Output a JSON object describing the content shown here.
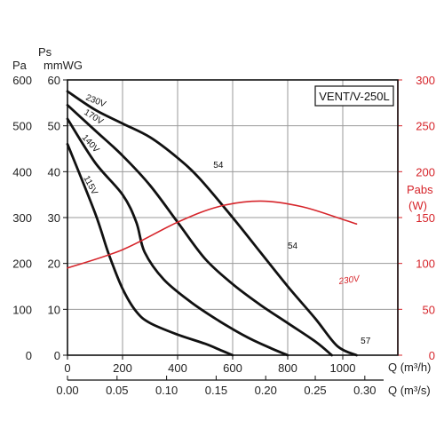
{
  "chart_data": {
    "type": "line",
    "model_label": "VENT/V-250L",
    "axes": {
      "pressure_pa": {
        "title": "Pa",
        "range": [
          0,
          600
        ],
        "ticks": [
          "0",
          "100",
          "200",
          "300",
          "400",
          "500",
          "600"
        ]
      },
      "pressure_mmwg": {
        "title_top": "Ps",
        "title": "mmWG",
        "range": [
          0,
          60
        ],
        "ticks": [
          "0",
          "10",
          "20",
          "30",
          "40",
          "50",
          "60"
        ]
      },
      "power": {
        "title_top": "Pabs",
        "title": "(W)",
        "range": [
          0,
          300
        ],
        "ticks": [
          "0",
          "50",
          "100",
          "150",
          "200",
          "250",
          "300"
        ],
        "color": "#d6242a"
      },
      "flow_m3h": {
        "title": "Q (m³/h)",
        "range": [
          0,
          1200
        ],
        "ticks": [
          "0",
          "200",
          "400",
          "600",
          "800",
          "1000"
        ]
      },
      "flow_m3s": {
        "title": "Q (m³/s)",
        "range": [
          0,
          0.3333
        ],
        "ticks": [
          "0.00",
          "0.05",
          "0.10",
          "0.15",
          "0.20",
          "0.25",
          "0.30"
        ]
      }
    },
    "grid": true,
    "series": [
      {
        "name": "230V",
        "color": "#111111",
        "points": [
          [
            0,
            575
          ],
          [
            100,
            535
          ],
          [
            200,
            505
          ],
          [
            300,
            475
          ],
          [
            400,
            430
          ],
          [
            480,
            385
          ],
          [
            600,
            300
          ],
          [
            700,
            225
          ],
          [
            800,
            150
          ],
          [
            900,
            80
          ],
          [
            980,
            20
          ],
          [
            1050,
            0
          ]
        ]
      },
      {
        "name": "170V",
        "color": "#111111",
        "points": [
          [
            0,
            545
          ],
          [
            100,
            490
          ],
          [
            200,
            435
          ],
          [
            300,
            370
          ],
          [
            400,
            290
          ],
          [
            500,
            210
          ],
          [
            600,
            155
          ],
          [
            700,
            110
          ],
          [
            800,
            70
          ],
          [
            900,
            30
          ],
          [
            960,
            0
          ]
        ]
      },
      {
        "name": "140V",
        "color": "#111111",
        "points": [
          [
            0,
            515
          ],
          [
            100,
            420
          ],
          [
            200,
            350
          ],
          [
            250,
            290
          ],
          [
            280,
            225
          ],
          [
            350,
            165
          ],
          [
            450,
            115
          ],
          [
            550,
            75
          ],
          [
            650,
            40
          ],
          [
            740,
            15
          ],
          [
            800,
            0
          ]
        ]
      },
      {
        "name": "115V",
        "color": "#111111",
        "points": [
          [
            0,
            460
          ],
          [
            100,
            310
          ],
          [
            150,
            220
          ],
          [
            200,
            145
          ],
          [
            250,
            95
          ],
          [
            300,
            70
          ],
          [
            400,
            45
          ],
          [
            500,
            25
          ],
          [
            560,
            10
          ],
          [
            600,
            0
          ]
        ]
      },
      {
        "name": "230V",
        "axis": "power",
        "color": "#d6242a",
        "points": [
          [
            0,
            95
          ],
          [
            200,
            115
          ],
          [
            400,
            145
          ],
          [
            550,
            162
          ],
          [
            700,
            168
          ],
          [
            850,
            162
          ],
          [
            1000,
            148
          ],
          [
            1050,
            143
          ]
        ]
      }
    ],
    "annotations": [
      {
        "text": "54",
        "q": 530,
        "pa": 408
      },
      {
        "text": "54",
        "q": 800,
        "pa": 232
      },
      {
        "text": "57",
        "q": 1065,
        "pa": 25
      }
    ],
    "xlabel": "Q (m³/h)",
    "x2label": "Q (m³/s)"
  }
}
